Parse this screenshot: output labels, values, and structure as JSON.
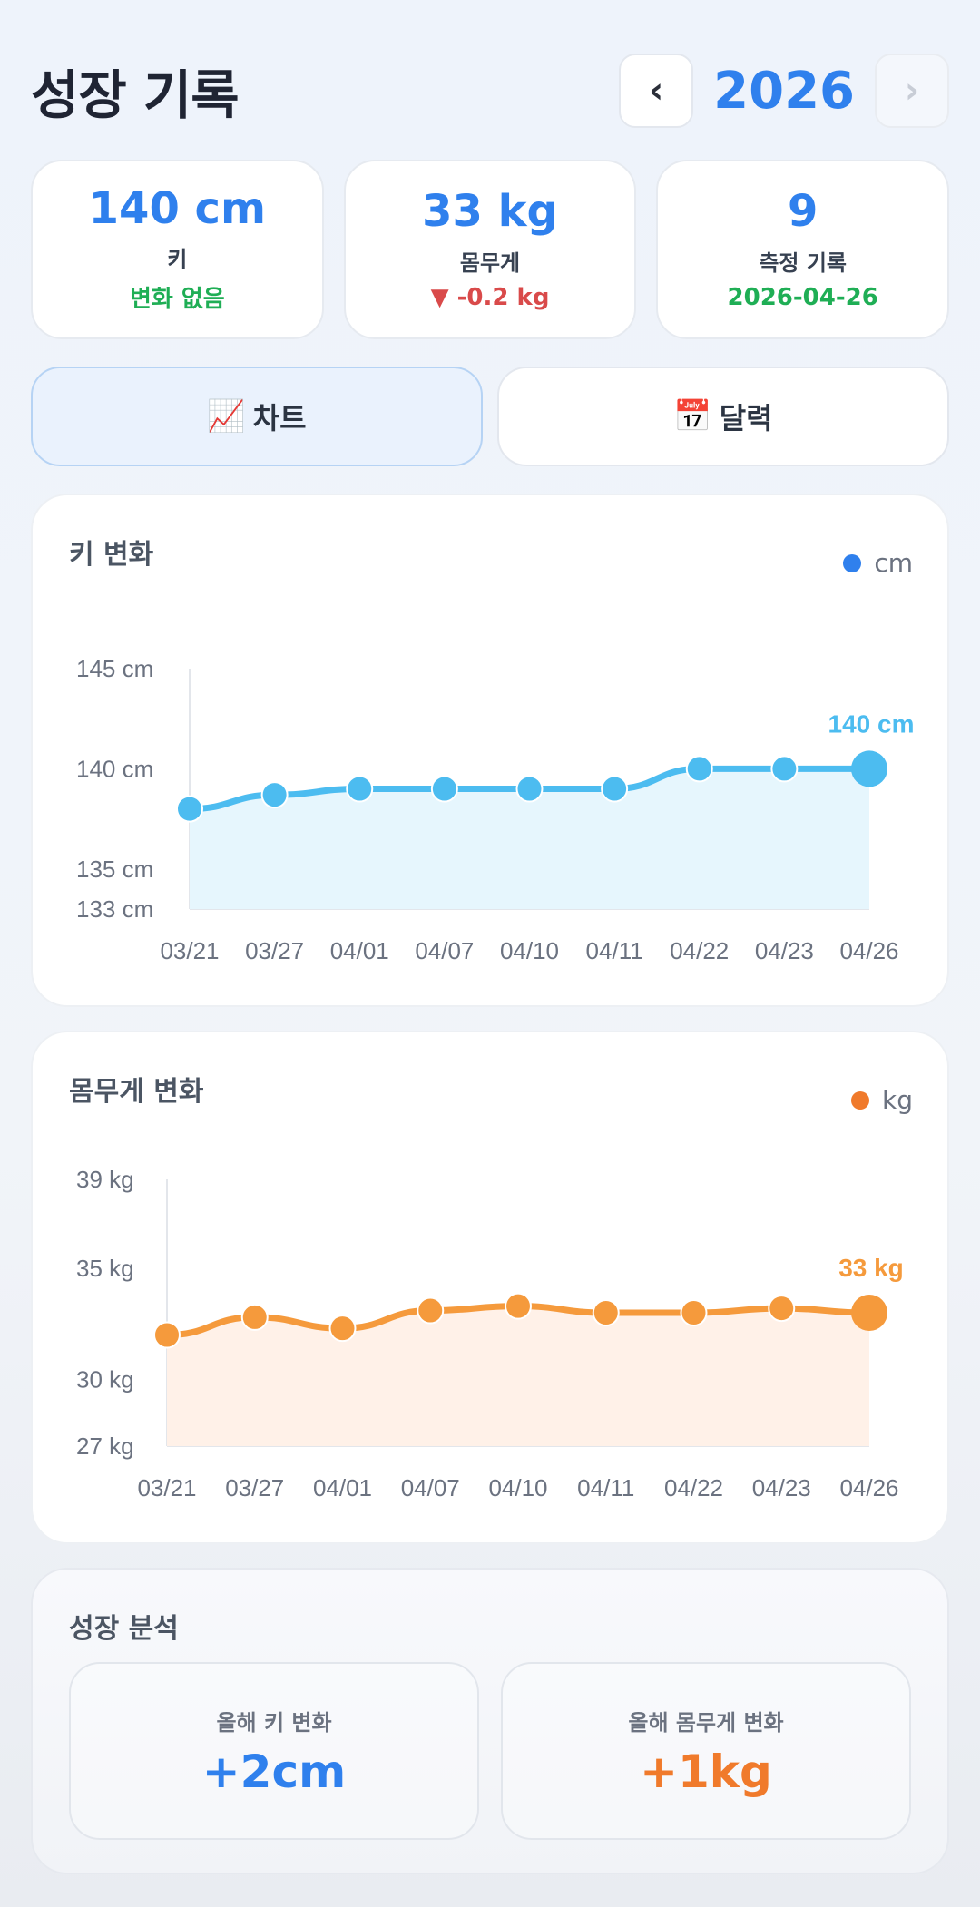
{
  "header": {
    "title": "성장 기록",
    "prev_label": "‹",
    "year": "2026",
    "next_label": "›"
  },
  "stats": [
    {
      "value": "140 cm",
      "label": "키",
      "sub": "변화 없음"
    },
    {
      "value": "33 kg",
      "label": "몸무게",
      "sub": "▼ -0.2 kg"
    },
    {
      "value": "9",
      "label": "측정 기록",
      "sub": "2026-04-26"
    }
  ],
  "tabs": [
    {
      "icon": "📈",
      "label": "차트"
    },
    {
      "icon": "📅",
      "label": "달력"
    }
  ],
  "height_chart": {
    "title": "키 변화",
    "legend": "cm",
    "color": "#4cbcf0",
    "end_label": "140 cm"
  },
  "weight_chart": {
    "title": "몸무게 변화",
    "legend": "kg",
    "color": "#f59a3c",
    "end_label": "33 kg"
  },
  "chart_data": [
    {
      "type": "area",
      "title": "키 변화",
      "categories": [
        "03/21",
        "03/27",
        "04/01",
        "04/07",
        "04/10",
        "04/11",
        "04/22",
        "04/23",
        "04/26"
      ],
      "series": [
        {
          "name": "cm",
          "values": [
            138,
            138.7,
            139,
            139,
            139,
            139,
            140,
            140,
            140
          ]
        }
      ],
      "yticks": [
        "145 cm",
        "140 cm",
        "135 cm",
        "133 cm"
      ],
      "ytick_values": [
        145,
        140,
        135,
        133
      ],
      "ylim": [
        133,
        145
      ],
      "unit": "cm"
    },
    {
      "type": "area",
      "title": "몸무게 변화",
      "categories": [
        "03/21",
        "03/27",
        "04/01",
        "04/07",
        "04/10",
        "04/11",
        "04/22",
        "04/23",
        "04/26"
      ],
      "series": [
        {
          "name": "kg",
          "values": [
            32,
            32.8,
            32.3,
            33.1,
            33.3,
            33,
            33,
            33.2,
            33
          ]
        }
      ],
      "yticks": [
        "39 kg",
        "35 kg",
        "30 kg",
        "27 kg"
      ],
      "ytick_values": [
        39,
        35,
        30,
        27
      ],
      "ylim": [
        27,
        39
      ],
      "unit": "kg"
    }
  ],
  "analysis": {
    "title": "성장 분석",
    "height_label": "올해 키 변화",
    "height_value": "+2cm",
    "weight_label": "올해 몸무게 변화",
    "weight_value": "+1kg"
  }
}
